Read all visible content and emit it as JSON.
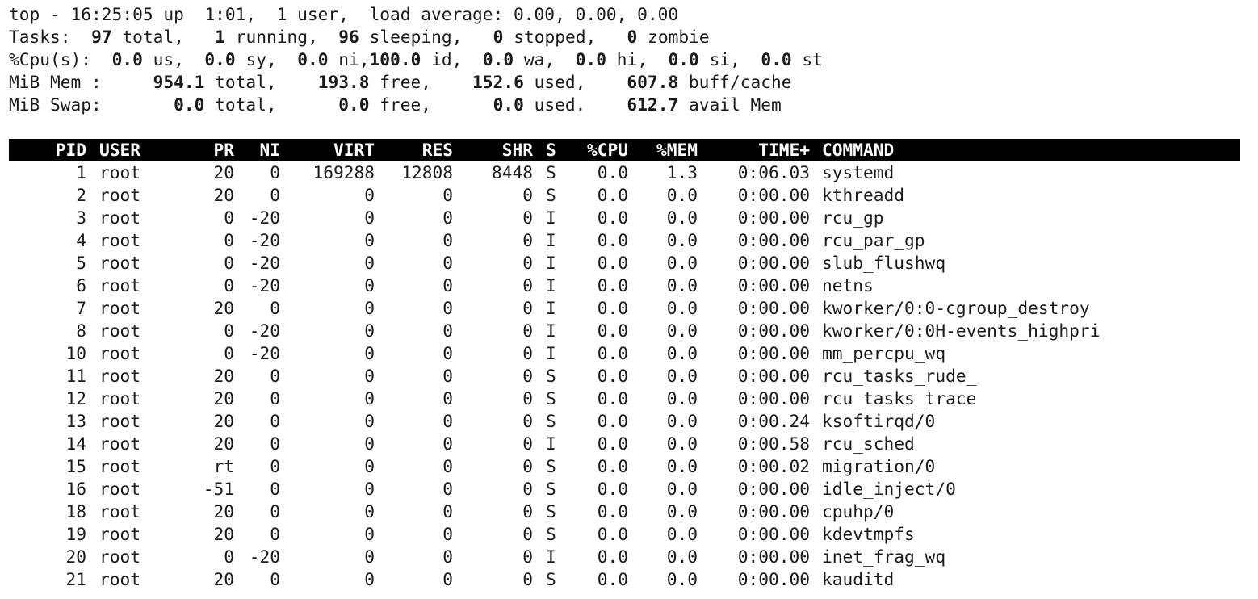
{
  "summary": {
    "line1": {
      "prefix": "top - 16:25:05 up  1:01,  1 user,  load average: 0.00, 0.00, 0.00"
    },
    "tasks": {
      "label": "Tasks:",
      "total": "97",
      "total_label": "total,",
      "running": "1",
      "running_label": "running,",
      "sleeping": "96",
      "sleeping_label": "sleeping,",
      "stopped": "0",
      "stopped_label": "stopped,",
      "zombie": "0",
      "zombie_label": "zombie"
    },
    "cpu": {
      "label": "%Cpu(s):",
      "us": "0.0",
      "sy": "0.0",
      "ni": "0.0",
      "id": "100.0",
      "wa": "0.0",
      "hi": "0.0",
      "si": "0.0",
      "st": "0.0"
    },
    "mem": {
      "label": "MiB Mem :",
      "total": "954.1",
      "free": "193.8",
      "used": "152.6",
      "buff_cache": "607.8"
    },
    "swap": {
      "label": "MiB Swap:",
      "total": "0.0",
      "free": "0.0",
      "used": "0.0",
      "avail_mem": "612.7"
    }
  },
  "columns": [
    "PID",
    "USER",
    "PR",
    "NI",
    "VIRT",
    "RES",
    "SHR",
    "S",
    "%CPU",
    "%MEM",
    "TIME+",
    "COMMAND"
  ],
  "processes": [
    {
      "pid": "1",
      "user": "root",
      "pr": "20",
      "ni": "0",
      "virt": "169288",
      "res": "12808",
      "shr": "8448",
      "s": "S",
      "cpu": "0.0",
      "mem": "1.3",
      "time": "0:06.03",
      "command": "systemd"
    },
    {
      "pid": "2",
      "user": "root",
      "pr": "20",
      "ni": "0",
      "virt": "0",
      "res": "0",
      "shr": "0",
      "s": "S",
      "cpu": "0.0",
      "mem": "0.0",
      "time": "0:00.00",
      "command": "kthreadd"
    },
    {
      "pid": "3",
      "user": "root",
      "pr": "0",
      "ni": "-20",
      "virt": "0",
      "res": "0",
      "shr": "0",
      "s": "I",
      "cpu": "0.0",
      "mem": "0.0",
      "time": "0:00.00",
      "command": "rcu_gp"
    },
    {
      "pid": "4",
      "user": "root",
      "pr": "0",
      "ni": "-20",
      "virt": "0",
      "res": "0",
      "shr": "0",
      "s": "I",
      "cpu": "0.0",
      "mem": "0.0",
      "time": "0:00.00",
      "command": "rcu_par_gp"
    },
    {
      "pid": "5",
      "user": "root",
      "pr": "0",
      "ni": "-20",
      "virt": "0",
      "res": "0",
      "shr": "0",
      "s": "I",
      "cpu": "0.0",
      "mem": "0.0",
      "time": "0:00.00",
      "command": "slub_flushwq"
    },
    {
      "pid": "6",
      "user": "root",
      "pr": "0",
      "ni": "-20",
      "virt": "0",
      "res": "0",
      "shr": "0",
      "s": "I",
      "cpu": "0.0",
      "mem": "0.0",
      "time": "0:00.00",
      "command": "netns"
    },
    {
      "pid": "7",
      "user": "root",
      "pr": "20",
      "ni": "0",
      "virt": "0",
      "res": "0",
      "shr": "0",
      "s": "I",
      "cpu": "0.0",
      "mem": "0.0",
      "time": "0:00.00",
      "command": "kworker/0:0-cgroup_destroy"
    },
    {
      "pid": "8",
      "user": "root",
      "pr": "0",
      "ni": "-20",
      "virt": "0",
      "res": "0",
      "shr": "0",
      "s": "I",
      "cpu": "0.0",
      "mem": "0.0",
      "time": "0:00.00",
      "command": "kworker/0:0H-events_highpri"
    },
    {
      "pid": "10",
      "user": "root",
      "pr": "0",
      "ni": "-20",
      "virt": "0",
      "res": "0",
      "shr": "0",
      "s": "I",
      "cpu": "0.0",
      "mem": "0.0",
      "time": "0:00.00",
      "command": "mm_percpu_wq"
    },
    {
      "pid": "11",
      "user": "root",
      "pr": "20",
      "ni": "0",
      "virt": "0",
      "res": "0",
      "shr": "0",
      "s": "S",
      "cpu": "0.0",
      "mem": "0.0",
      "time": "0:00.00",
      "command": "rcu_tasks_rude_"
    },
    {
      "pid": "12",
      "user": "root",
      "pr": "20",
      "ni": "0",
      "virt": "0",
      "res": "0",
      "shr": "0",
      "s": "S",
      "cpu": "0.0",
      "mem": "0.0",
      "time": "0:00.00",
      "command": "rcu_tasks_trace"
    },
    {
      "pid": "13",
      "user": "root",
      "pr": "20",
      "ni": "0",
      "virt": "0",
      "res": "0",
      "shr": "0",
      "s": "S",
      "cpu": "0.0",
      "mem": "0.0",
      "time": "0:00.24",
      "command": "ksoftirqd/0"
    },
    {
      "pid": "14",
      "user": "root",
      "pr": "20",
      "ni": "0",
      "virt": "0",
      "res": "0",
      "shr": "0",
      "s": "I",
      "cpu": "0.0",
      "mem": "0.0",
      "time": "0:00.58",
      "command": "rcu_sched"
    },
    {
      "pid": "15",
      "user": "root",
      "pr": "rt",
      "ni": "0",
      "virt": "0",
      "res": "0",
      "shr": "0",
      "s": "S",
      "cpu": "0.0",
      "mem": "0.0",
      "time": "0:00.02",
      "command": "migration/0"
    },
    {
      "pid": "16",
      "user": "root",
      "pr": "-51",
      "ni": "0",
      "virt": "0",
      "res": "0",
      "shr": "0",
      "s": "S",
      "cpu": "0.0",
      "mem": "0.0",
      "time": "0:00.00",
      "command": "idle_inject/0"
    },
    {
      "pid": "18",
      "user": "root",
      "pr": "20",
      "ni": "0",
      "virt": "0",
      "res": "0",
      "shr": "0",
      "s": "S",
      "cpu": "0.0",
      "mem": "0.0",
      "time": "0:00.00",
      "command": "cpuhp/0"
    },
    {
      "pid": "19",
      "user": "root",
      "pr": "20",
      "ni": "0",
      "virt": "0",
      "res": "0",
      "shr": "0",
      "s": "S",
      "cpu": "0.0",
      "mem": "0.0",
      "time": "0:00.00",
      "command": "kdevtmpfs"
    },
    {
      "pid": "20",
      "user": "root",
      "pr": "0",
      "ni": "-20",
      "virt": "0",
      "res": "0",
      "shr": "0",
      "s": "I",
      "cpu": "0.0",
      "mem": "0.0",
      "time": "0:00.00",
      "command": "inet_frag_wq"
    },
    {
      "pid": "21",
      "user": "root",
      "pr": "20",
      "ni": "0",
      "virt": "0",
      "res": "0",
      "shr": "0",
      "s": "S",
      "cpu": "0.0",
      "mem": "0.0",
      "time": "0:00.00",
      "command": "kauditd"
    }
  ]
}
